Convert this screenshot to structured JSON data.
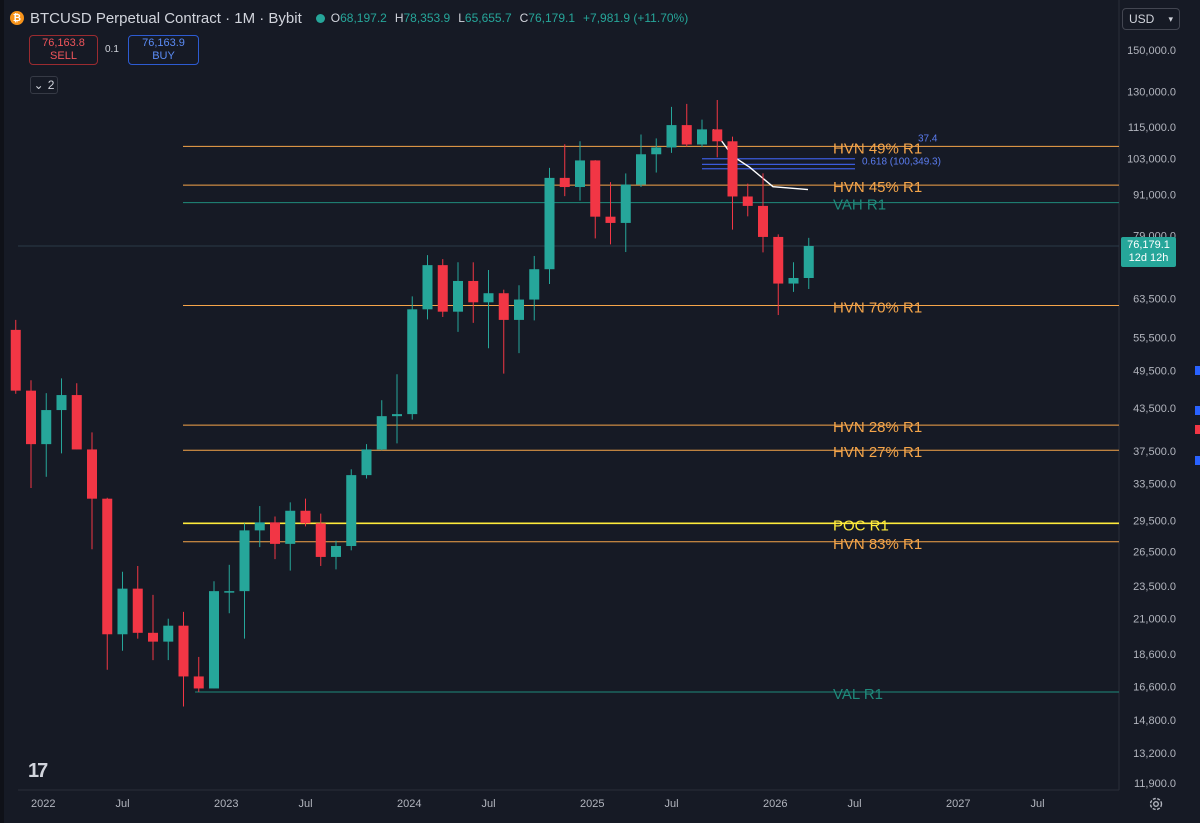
{
  "header": {
    "coin_symbol": "₿",
    "title": "BTCUSD Perpetual Contract · 1M · Bybit",
    "ohlc": [
      {
        "k": "O",
        "v": "68,197.2"
      },
      {
        "k": "H",
        "v": "78,353.9"
      },
      {
        "k": "L",
        "v": "65,655.7"
      },
      {
        "k": "C",
        "v": "76,179.1"
      },
      {
        "k": "",
        "v": "+7,981.9 (+11.70%)"
      }
    ]
  },
  "trade": {
    "sell_price": "76,163.8",
    "sell_label": "SELL",
    "spread": "0.1",
    "buy_price": "76,163.9",
    "buy_label": "BUY"
  },
  "indicators_toggle": {
    "count": "2"
  },
  "currency": "USD",
  "current_price": {
    "price": "76,179.1",
    "countdown": "12d 12h"
  },
  "colors": {
    "background": "#161a25",
    "up": "#26a69a",
    "down": "#f23645",
    "hvn": "#f5a54a",
    "value_area": "#1f8a7b",
    "poc": "#ffeb3b",
    "fib": "#3b5bdb"
  },
  "chart_data": {
    "type": "candlestick",
    "log_scale": true,
    "y_ticks": [
      "150,000.0",
      "130,000.0",
      "115,000.0",
      "103,000.0",
      "91,000.0",
      "79,000.0",
      "63,500.0",
      "55,500.0",
      "49,500.0",
      "43,500.0",
      "37,500.0",
      "33,500.0",
      "29,500.0",
      "26,500.0",
      "23,500.0",
      "21,000.0",
      "18,600.0",
      "16,600.0",
      "14,800.0",
      "13,200.0",
      "11,900.0"
    ],
    "x_ticks": [
      {
        "label": "2022",
        "date": "2022-01"
      },
      {
        "label": "Jul",
        "date": "2022-07"
      },
      {
        "label": "2023",
        "date": "2023-01"
      },
      {
        "label": "Jul",
        "date": "2023-07"
      },
      {
        "label": "2024",
        "date": "2024-01"
      },
      {
        "label": "Jul",
        "date": "2024-07"
      },
      {
        "label": "2025",
        "date": "2025-01"
      },
      {
        "label": "Jul",
        "date": "2025-07"
      },
      {
        "label": "2026",
        "date": "2026-01"
      },
      {
        "label": "Jul",
        "date": "2026-07"
      },
      {
        "label": "2027",
        "date": "2027-01"
      },
      {
        "label": "Jul",
        "date": "2027-07"
      }
    ],
    "candles": [
      {
        "t": "2021-12",
        "o": 57000,
        "h": 59000,
        "l": 45700,
        "c": 46200
      },
      {
        "t": "2022-01",
        "o": 46200,
        "h": 47900,
        "l": 33000,
        "c": 38400
      },
      {
        "t": "2022-02",
        "o": 38400,
        "h": 45800,
        "l": 34300,
        "c": 43200
      },
      {
        "t": "2022-03",
        "o": 43200,
        "h": 48200,
        "l": 37200,
        "c": 45500
      },
      {
        "t": "2022-04",
        "o": 45500,
        "h": 47400,
        "l": 37700,
        "c": 37700
      },
      {
        "t": "2022-05",
        "o": 37700,
        "h": 40000,
        "l": 26700,
        "c": 31800
      },
      {
        "t": "2022-06",
        "o": 31800,
        "h": 31900,
        "l": 17600,
        "c": 19900
      },
      {
        "t": "2022-07",
        "o": 19900,
        "h": 24700,
        "l": 18800,
        "c": 23300
      },
      {
        "t": "2022-08",
        "o": 23300,
        "h": 25200,
        "l": 19600,
        "c": 20000
      },
      {
        "t": "2022-09",
        "o": 20000,
        "h": 22800,
        "l": 18200,
        "c": 19400
      },
      {
        "t": "2022-10",
        "o": 19400,
        "h": 21000,
        "l": 18200,
        "c": 20500
      },
      {
        "t": "2022-11",
        "o": 20500,
        "h": 21500,
        "l": 15500,
        "c": 17200
      },
      {
        "t": "2022-12",
        "o": 17200,
        "h": 18400,
        "l": 16300,
        "c": 16500
      },
      {
        "t": "2023-01",
        "o": 16500,
        "h": 23900,
        "l": 16500,
        "c": 23100
      },
      {
        "t": "2023-02",
        "o": 23100,
        "h": 25300,
        "l": 21400,
        "c": 23100
      },
      {
        "t": "2023-03",
        "o": 23100,
        "h": 29200,
        "l": 19600,
        "c": 28500
      },
      {
        "t": "2023-04",
        "o": 28500,
        "h": 31000,
        "l": 26900,
        "c": 29300
      },
      {
        "t": "2023-05",
        "o": 29300,
        "h": 29900,
        "l": 25800,
        "c": 27200
      },
      {
        "t": "2023-06",
        "o": 27200,
        "h": 31400,
        "l": 24800,
        "c": 30500
      },
      {
        "t": "2023-07",
        "o": 30500,
        "h": 31800,
        "l": 28900,
        "c": 29200
      },
      {
        "t": "2023-08",
        "o": 29200,
        "h": 30200,
        "l": 25200,
        "c": 26000
      },
      {
        "t": "2023-09",
        "o": 26000,
        "h": 27500,
        "l": 24900,
        "c": 27000
      },
      {
        "t": "2023-10",
        "o": 27000,
        "h": 35200,
        "l": 26600,
        "c": 34500
      },
      {
        "t": "2023-11",
        "o": 34500,
        "h": 38400,
        "l": 34100,
        "c": 37700
      },
      {
        "t": "2023-12",
        "o": 37700,
        "h": 44700,
        "l": 37600,
        "c": 42300
      },
      {
        "t": "2024-01",
        "o": 42300,
        "h": 48900,
        "l": 38500,
        "c": 42600
      },
      {
        "t": "2024-02",
        "o": 42600,
        "h": 64000,
        "l": 41800,
        "c": 61200
      },
      {
        "t": "2024-03",
        "o": 61200,
        "h": 73800,
        "l": 59100,
        "c": 71300
      },
      {
        "t": "2024-04",
        "o": 71300,
        "h": 72800,
        "l": 59600,
        "c": 60700
      },
      {
        "t": "2024-05",
        "o": 60700,
        "h": 72000,
        "l": 56600,
        "c": 67500
      },
      {
        "t": "2024-06",
        "o": 67500,
        "h": 72000,
        "l": 58400,
        "c": 62700
      },
      {
        "t": "2024-07",
        "o": 62700,
        "h": 70100,
        "l": 53500,
        "c": 64700
      },
      {
        "t": "2024-08",
        "o": 64700,
        "h": 65500,
        "l": 49000,
        "c": 59000
      },
      {
        "t": "2024-09",
        "o": 59000,
        "h": 66500,
        "l": 52600,
        "c": 63300
      },
      {
        "t": "2024-10",
        "o": 63300,
        "h": 73600,
        "l": 58900,
        "c": 70300
      },
      {
        "t": "2024-11",
        "o": 70300,
        "h": 99800,
        "l": 66800,
        "c": 96400
      },
      {
        "t": "2024-12",
        "o": 96400,
        "h": 108300,
        "l": 90500,
        "c": 93400
      },
      {
        "t": "2025-01",
        "o": 93400,
        "h": 109400,
        "l": 89100,
        "c": 102400
      },
      {
        "t": "2025-02",
        "o": 102400,
        "h": 102500,
        "l": 78200,
        "c": 84300
      },
      {
        "t": "2025-03",
        "o": 84300,
        "h": 95000,
        "l": 76600,
        "c": 82500
      },
      {
        "t": "2025-04",
        "o": 82500,
        "h": 97900,
        "l": 74600,
        "c": 94200
      },
      {
        "t": "2025-05",
        "o": 94200,
        "h": 112000,
        "l": 93400,
        "c": 104600
      },
      {
        "t": "2025-06",
        "o": 104600,
        "h": 110500,
        "l": 98200,
        "c": 107100
      },
      {
        "t": "2025-07",
        "o": 107100,
        "h": 123200,
        "l": 105100,
        "c": 115700
      },
      {
        "t": "2025-08",
        "o": 115700,
        "h": 124500,
        "l": 107400,
        "c": 108200
      },
      {
        "t": "2025-09",
        "o": 108200,
        "h": 117900,
        "l": 107200,
        "c": 114000
      },
      {
        "t": "2025-10",
        "o": 114000,
        "h": 126200,
        "l": 103500,
        "c": 109400
      },
      {
        "t": "2025-11",
        "o": 109400,
        "h": 111200,
        "l": 80600,
        "c": 90400
      },
      {
        "t": "2025-12",
        "o": 90400,
        "h": 94500,
        "l": 84400,
        "c": 87500
      },
      {
        "t": "2026-01",
        "o": 87500,
        "h": 97900,
        "l": 74500,
        "c": 78600
      },
      {
        "t": "2026-02",
        "o": 78600,
        "h": 79300,
        "l": 60000,
        "c": 66900
      },
      {
        "t": "2026-03",
        "o": 66900,
        "h": 72000,
        "l": 65000,
        "c": 68200
      },
      {
        "t": "2026-04",
        "o": 68197.2,
        "h": 78353.9,
        "l": 65655.7,
        "c": 76179.1
      }
    ],
    "levels": [
      {
        "label": "HVN 49% R1",
        "value": 107500,
        "kind": "hvn"
      },
      {
        "label": "HVN 45% R1",
        "value": 94000,
        "kind": "hvn"
      },
      {
        "label": "VAH R1",
        "value": 88500,
        "kind": "va"
      },
      {
        "label": "HVN 70% R1",
        "value": 62000,
        "kind": "hvn"
      },
      {
        "label": "HVN 28% R1",
        "value": 41000,
        "kind": "hvn"
      },
      {
        "label": "HVN 27% R1",
        "value": 37600,
        "kind": "hvn"
      },
      {
        "label": "POC R1",
        "value": 29200,
        "kind": "poc"
      },
      {
        "label": "HVN 83% R1",
        "value": 27400,
        "kind": "hvn"
      },
      {
        "label": "VAL R1",
        "value": 16300,
        "kind": "va"
      }
    ],
    "fib_label": "0.618 (100,349.3)",
    "fib_partial": "37.4",
    "fib_lines": [
      103000,
      101000,
      99500
    ]
  }
}
